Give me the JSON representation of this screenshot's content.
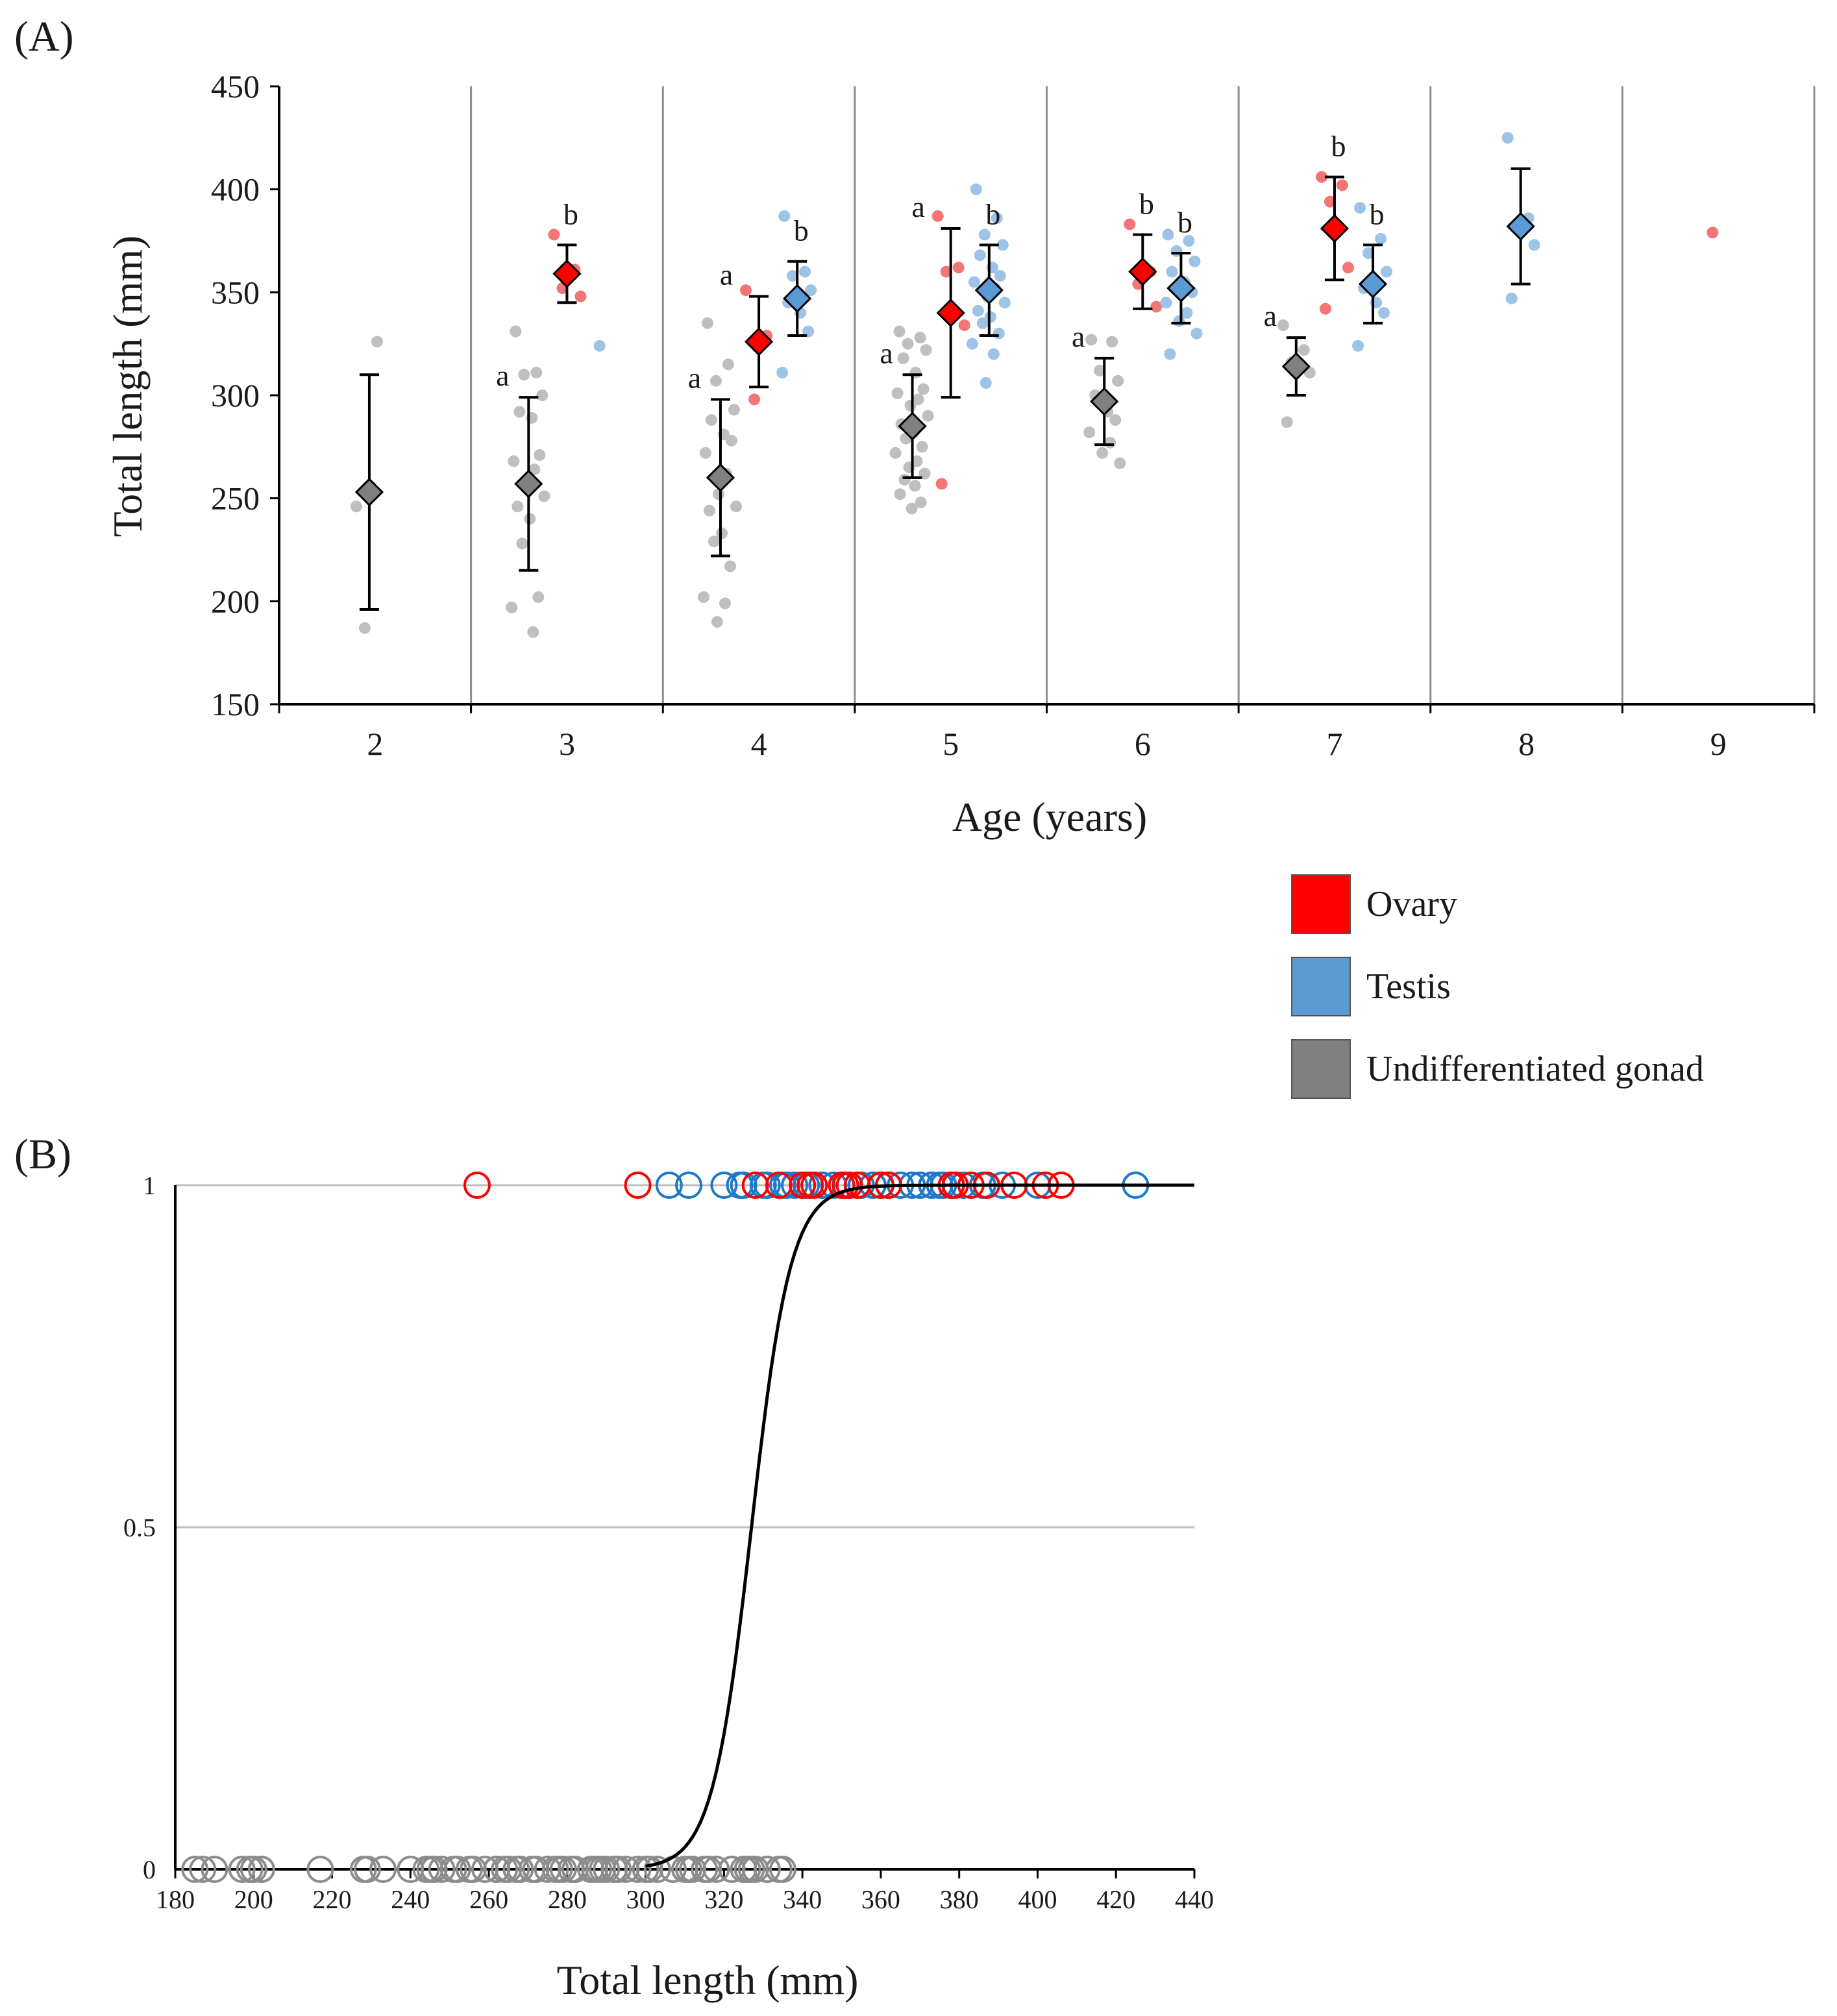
{
  "colors": {
    "ovary": "#ff0000",
    "testis": "#5b9bd5",
    "undiff": "#808080",
    "ovary_light": "#f47575",
    "testis_light": "#9dc3e6",
    "undiff_light": "#bfbfbf",
    "divider": "#8c8c8c",
    "axis": "#000000",
    "grid_b": "#bfbfbf"
  },
  "chart_data": [
    {
      "id": "A",
      "panel_label": "(A)",
      "type": "scatter",
      "title": "",
      "xlabel": "Age (years)",
      "ylabel": "Total length (mm)",
      "ylim": [
        150,
        450
      ],
      "yticks": [
        150,
        200,
        250,
        300,
        350,
        400,
        450
      ],
      "categories": [
        "2",
        "3",
        "4",
        "5",
        "6",
        "7",
        "8",
        "9"
      ],
      "legend": {
        "position": "bottom-right",
        "entries": [
          {
            "key": "ovary",
            "label": "Ovary"
          },
          {
            "key": "testis",
            "label": "Testis"
          },
          {
            "key": "undiff",
            "label": "Undifferentiated gonad"
          }
        ]
      },
      "groups": [
        {
          "age": "2",
          "type": "undiff",
          "mean": 253,
          "sd": 57,
          "letter": "",
          "points": [
            246,
            326,
            187
          ]
        },
        {
          "age": "3",
          "type": "undiff",
          "mean": 257,
          "sd": 42,
          "letter": "a",
          "points": [
            331,
            311,
            310,
            300,
            292,
            289,
            271,
            268,
            264,
            255,
            251,
            246,
            240,
            228,
            202,
            197,
            185
          ]
        },
        {
          "age": "3",
          "type": "ovary",
          "mean": 359,
          "sd": 14,
          "letter": "b",
          "points": [
            378,
            361,
            352,
            348
          ]
        },
        {
          "age": "3",
          "type": "testis",
          "mean": null,
          "sd": null,
          "letter": "",
          "points": [
            324
          ]
        },
        {
          "age": "4",
          "type": "undiff",
          "mean": 260,
          "sd": 38,
          "letter": "a",
          "points": [
            335,
            315,
            307,
            293,
            288,
            281,
            278,
            272,
            262,
            252,
            246,
            244,
            233,
            229,
            217,
            202,
            199,
            190
          ]
        },
        {
          "age": "4",
          "type": "ovary",
          "mean": 326,
          "sd": 22,
          "letter": "a",
          "points": [
            351,
            329,
            298
          ]
        },
        {
          "age": "4",
          "type": "testis",
          "mean": 347,
          "sd": 18,
          "letter": "b",
          "points": [
            387,
            360,
            358,
            351,
            345,
            340,
            331,
            311
          ]
        },
        {
          "age": "5",
          "type": "undiff",
          "mean": 285,
          "sd": 25,
          "letter": "a",
          "points": [
            331,
            328,
            325,
            322,
            318,
            311,
            303,
            301,
            298,
            295,
            290,
            286,
            282,
            279,
            275,
            272,
            268,
            265,
            262,
            259,
            256,
            252,
            248,
            245
          ]
        },
        {
          "age": "5",
          "type": "ovary",
          "mean": 340,
          "sd": 41,
          "letter": "a",
          "points": [
            387,
            362,
            360,
            334,
            257
          ]
        },
        {
          "age": "5",
          "type": "testis",
          "mean": 351,
          "sd": 22,
          "letter": "b",
          "points": [
            400,
            386,
            378,
            373,
            368,
            362,
            358,
            355,
            352,
            348,
            345,
            341,
            338,
            335,
            330,
            325,
            320,
            306
          ]
        },
        {
          "age": "6",
          "type": "undiff",
          "mean": 297,
          "sd": 21,
          "letter": "a",
          "points": [
            327,
            326,
            312,
            307,
            300,
            292,
            288,
            282,
            277,
            272,
            267
          ]
        },
        {
          "age": "6",
          "type": "ovary",
          "mean": 360,
          "sd": 18,
          "letter": "b",
          "points": [
            383,
            360,
            354,
            343
          ]
        },
        {
          "age": "6",
          "type": "testis",
          "mean": 352,
          "sd": 17,
          "letter": "b",
          "points": [
            378,
            375,
            370,
            365,
            360,
            355,
            350,
            345,
            340,
            336,
            330,
            320
          ]
        },
        {
          "age": "7",
          "type": "undiff",
          "mean": 314,
          "sd": 14,
          "letter": "a",
          "points": [
            334,
            322,
            316,
            311,
            287
          ]
        },
        {
          "age": "7",
          "type": "ovary",
          "mean": 381,
          "sd": 25,
          "letter": "b",
          "points": [
            406,
            402,
            394,
            362,
            342
          ]
        },
        {
          "age": "7",
          "type": "testis",
          "mean": 354,
          "sd": 19,
          "letter": "b",
          "points": [
            391,
            376,
            369,
            360,
            352,
            345,
            340,
            324
          ]
        },
        {
          "age": "8",
          "type": "testis",
          "mean": 382,
          "sd": 28,
          "letter": "",
          "points": [
            425,
            386,
            381,
            373,
            347
          ]
        },
        {
          "age": "9",
          "type": "ovary",
          "mean": null,
          "sd": null,
          "letter": "",
          "points": [
            379
          ]
        }
      ]
    },
    {
      "id": "B",
      "panel_label": "(B)",
      "type": "scatter",
      "title": "",
      "xlabel": "Total length (mm)",
      "ylabel": "",
      "xlim": [
        180,
        440
      ],
      "ylim": [
        0,
        1
      ],
      "xticks": [
        180,
        200,
        220,
        240,
        260,
        280,
        300,
        320,
        340,
        360,
        380,
        400,
        420,
        440
      ],
      "yticks": [
        0,
        0.5,
        1
      ],
      "ytick_labels": [
        "0",
        "0.5",
        "1"
      ],
      "logistic_curve": {
        "midpoint": 327,
        "slope": 0.2
      },
      "series": [
        {
          "name": "Ovary",
          "key": "ovary",
          "y": 1,
          "x": [
            257,
            298,
            328,
            334,
            340,
            342,
            343,
            350,
            351,
            352,
            354,
            360,
            362,
            362,
            378,
            379,
            383,
            387,
            394,
            402,
            406
          ]
        },
        {
          "name": "Testis",
          "key": "testis",
          "y": 1,
          "x": [
            306,
            311,
            320,
            324,
            325,
            330,
            331,
            335,
            336,
            338,
            340,
            341,
            345,
            345,
            348,
            350,
            351,
            352,
            355,
            355,
            358,
            358,
            360,
            360,
            362,
            365,
            368,
            370,
            373,
            373,
            375,
            376,
            378,
            378,
            381,
            386,
            387,
            391,
            400,
            425
          ]
        },
        {
          "name": "Undifferentiated gonad",
          "key": "undiff",
          "y": 0,
          "x": [
            185,
            187,
            190,
            197,
            199,
            200,
            202,
            202,
            217,
            228,
            229,
            233,
            240,
            244,
            245,
            246,
            246,
            248,
            251,
            252,
            255,
            256,
            259,
            262,
            262,
            264,
            265,
            267,
            268,
            268,
            271,
            272,
            272,
            275,
            277,
            278,
            279,
            281,
            282,
            282,
            286,
            287,
            288,
            289,
            290,
            292,
            292,
            293,
            295,
            298,
            300,
            301,
            303,
            307,
            307,
            310,
            311,
            311,
            311,
            312,
            315,
            316,
            318,
            322,
            322,
            325,
            326,
            326,
            327,
            328,
            331,
            331,
            334,
            335
          ]
        }
      ]
    }
  ]
}
